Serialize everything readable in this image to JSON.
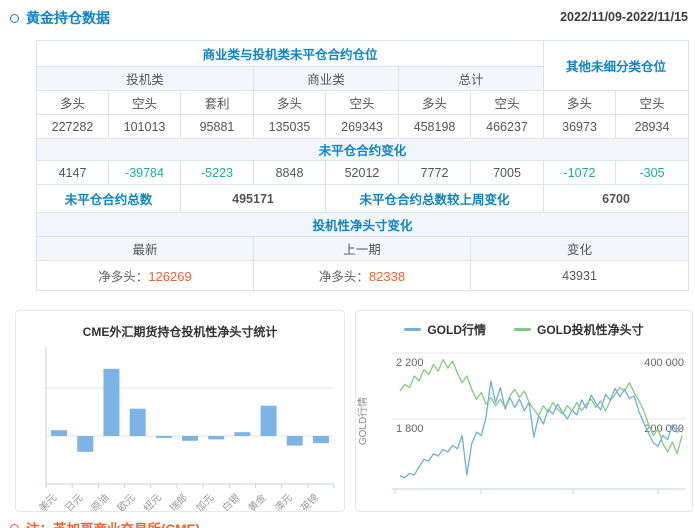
{
  "page": {
    "title": "黄金持仓数据",
    "date_range": "2022/11/09-2022/11/15",
    "note": "注：芝加哥商业交易所(CME)"
  },
  "colors": {
    "accent_blue": "#0d85c8",
    "positive_orange": "#f4612e",
    "negative_teal": "#1fae9f",
    "bar_fill": "#7db4e6",
    "line_blue": "#6cb1d9",
    "line_green": "#83c983",
    "border": "#d9e4ee"
  },
  "table": {
    "header_group_left": "商业类与投机类未平仓合约仓位",
    "header_group_right": "其他未细分类仓位",
    "subgroups": [
      "投机类",
      "商业类",
      "总计"
    ],
    "col_headers": [
      "多头",
      "空头",
      "套利",
      "多头",
      "空头",
      "多头",
      "空头",
      "多头",
      "空头"
    ],
    "open_interest": [
      "227282",
      "101013",
      "95881",
      "135035",
      "269343",
      "458198",
      "466237",
      "36973",
      "28934"
    ],
    "change_section_title": "未平仓合约变化",
    "changes": [
      "4147",
      "-39784",
      "-5223",
      "8848",
      "52012",
      "7772",
      "7005",
      "-1072",
      "-305"
    ],
    "total_label": "未平仓合约总数",
    "total_value": "495171",
    "total_change_label": "未平仓合约总数较上周变化",
    "total_change_value": "6700",
    "net_section_title": "投机性净头寸变化",
    "net_headers": [
      "最新",
      "上一期",
      "变化"
    ],
    "net_latest_label": "净多头：",
    "net_latest_value": "126269",
    "net_prev_label": "净多头：",
    "net_prev_value": "82338",
    "net_change_value": "43931"
  },
  "chart_data": [
    {
      "type": "bar",
      "title": "CME外汇期货持仓投机性净头寸统计",
      "categories": [
        "美元",
        "日元",
        "原油",
        "欧元",
        "纽元",
        "瑞郎",
        "加元",
        "白银",
        "黄金",
        "澳元",
        "英镑"
      ],
      "values": [
        0.12,
        -0.33,
        1.4,
        0.57,
        -0.04,
        -0.1,
        -0.07,
        0.08,
        0.63,
        -0.2,
        -0.15
      ],
      "unit": "gridline-interval (y axis unlabeled; 1.0 = one gridline spacing)",
      "ylim": [
        -1,
        2
      ],
      "grid": true,
      "bar_color": "#7db4e6"
    },
    {
      "type": "line",
      "legend_position": "top",
      "ylabel_left": "GOLD行情",
      "yaxis_left": {
        "tick_labels": [
          "2 200",
          "1 800"
        ],
        "gridline_values": [
          2200,
          1800
        ]
      },
      "yaxis_right": {
        "tick_labels": [
          "400 000",
          "200 000"
        ],
        "gridline_values": [
          400000,
          200000
        ]
      },
      "series": [
        {
          "name": "GOLD行情",
          "axis": "left",
          "color": "#6cb1d9",
          "values": [
            1455,
            1445,
            1470,
            1460,
            1510,
            1555,
            1545,
            1590,
            1575,
            1615,
            1600,
            1640,
            1620,
            1700,
            1460,
            1650,
            1720,
            1700,
            1810,
            2030,
            1900,
            1990,
            1860,
            1930,
            1870,
            1920,
            1850,
            1900,
            1690,
            1820,
            1770,
            1860,
            1830,
            1890,
            1840,
            1800,
            1855,
            1825,
            1915,
            1865,
            1945,
            1895,
            1855,
            1950,
            1915,
            1985,
            1935,
            1980,
            1925,
            1940,
            1845,
            1775,
            1715,
            1655,
            1635,
            1700,
            1675,
            1765,
            1720,
            1750
          ]
        },
        {
          "name": "GOLD投机性净头寸",
          "axis": "right",
          "color": "#83c983",
          "values": [
            285000,
            305000,
            295000,
            330000,
            315000,
            350000,
            335000,
            365000,
            345000,
            380000,
            355000,
            375000,
            340000,
            310000,
            330000,
            290000,
            260000,
            280000,
            245000,
            265000,
            240000,
            260000,
            235000,
            270000,
            290000,
            265000,
            285000,
            250000,
            230000,
            210000,
            240000,
            220000,
            250000,
            230000,
            215000,
            240000,
            225000,
            250000,
            225000,
            245000,
            260000,
            235000,
            255000,
            225000,
            255000,
            275000,
            295000,
            285000,
            310000,
            280000,
            255000,
            225000,
            185000,
            150000,
            170000,
            125000,
            100000,
            130000,
            95000,
            150000
          ]
        }
      ]
    }
  ]
}
